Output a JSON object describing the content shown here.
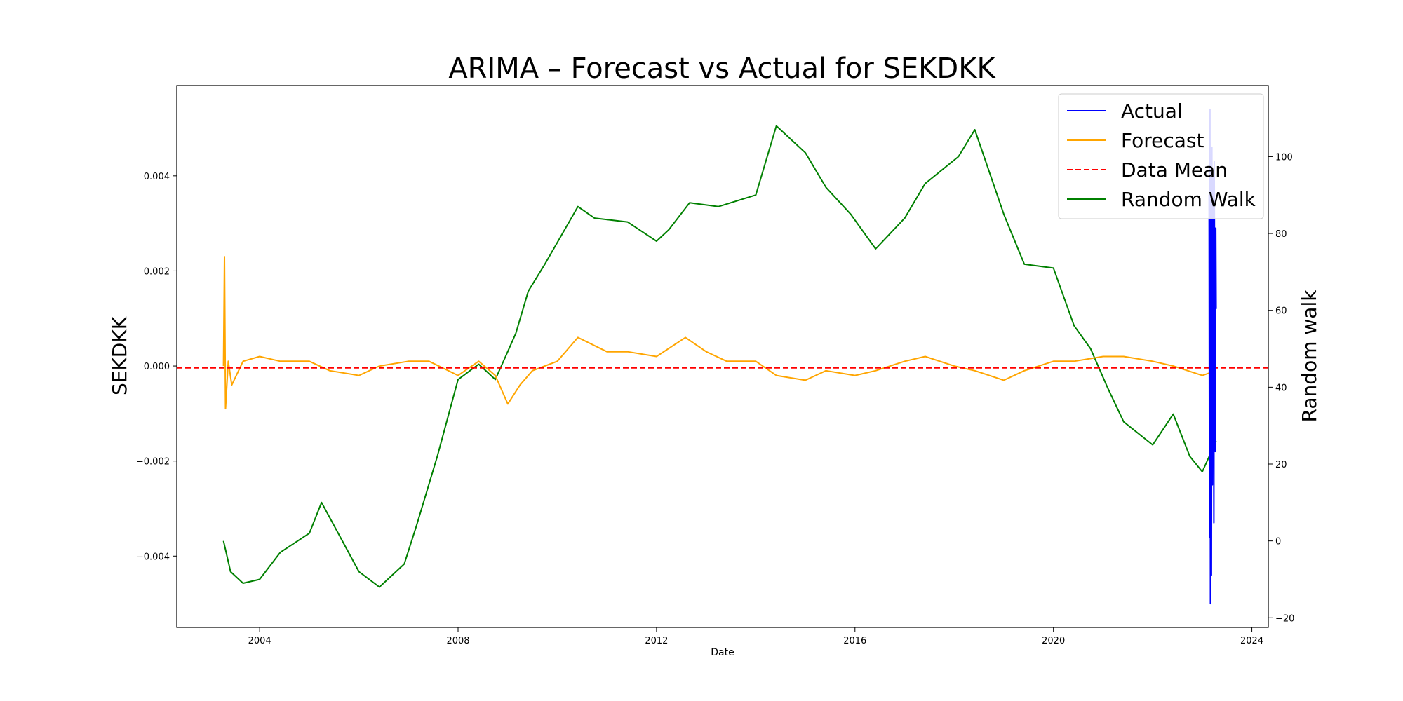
{
  "chart_data": {
    "type": "line",
    "title": "ARIMA – Forecast vs Actual for SEKDKK",
    "xlabel": "Date",
    "ylabel": "SEKDKK",
    "y2label": "Random walk",
    "x_ticks": [
      "2004",
      "2008",
      "2012",
      "2016",
      "2020",
      "2024"
    ],
    "xlim": [
      "2002-05-01",
      "2024-05-01"
    ],
    "ylim": [
      -0.0055,
      0.0059
    ],
    "y_ticks": [
      -0.004,
      -0.002,
      0.0,
      0.002,
      0.004
    ],
    "y_tick_labels": [
      "−0.004",
      "−0.002",
      "0.000",
      "0.002",
      "0.004"
    ],
    "y2lim": [
      -22.5,
      118.5
    ],
    "y2_ticks": [
      -20,
      0,
      20,
      40,
      60,
      80,
      100
    ],
    "y2_tick_labels": [
      "−20",
      "0",
      "20",
      "40",
      "60",
      "80",
      "100"
    ],
    "grid": false,
    "legend_position": "top-right",
    "series": [
      {
        "name": "Actual",
        "color": "#0000ff",
        "axis": "left",
        "x": [
          "2023-02-20",
          "2023-02-23",
          "2023-02-27",
          "2023-03-02",
          "2023-03-06",
          "2023-03-09",
          "2023-03-13",
          "2023-03-16",
          "2023-03-20",
          "2023-03-23",
          "2023-03-27",
          "2023-03-30",
          "2023-04-03",
          "2023-04-06",
          "2023-04-10",
          "2023-04-13"
        ],
        "y": [
          0.0036,
          -0.0036,
          0.0054,
          -0.005,
          0.0021,
          -0.0044,
          0.0046,
          -0.0025,
          0.004,
          0.003,
          -0.0033,
          0.0043,
          0.0006,
          -0.0018,
          0.0029,
          0.0012
        ]
      },
      {
        "name": "Forecast",
        "color": "#ffa500",
        "axis": "left",
        "x": [
          "2003-04-10",
          "2003-04-17",
          "2003-04-25",
          "2003-05-15",
          "2003-06-10",
          "2003-09-01",
          "2004-01-01",
          "2004-06-01",
          "2005-01-01",
          "2005-06-01",
          "2006-01-01",
          "2006-06-01",
          "2007-01-01",
          "2007-06-01",
          "2008-01-01",
          "2008-06-01",
          "2008-10-01",
          "2009-01-01",
          "2009-04-01",
          "2009-07-01",
          "2010-01-01",
          "2010-06-01",
          "2011-01-01",
          "2011-06-01",
          "2012-01-01",
          "2012-08-01",
          "2013-01-01",
          "2013-06-01",
          "2014-01-01",
          "2014-06-01",
          "2015-01-01",
          "2015-06-01",
          "2016-01-01",
          "2016-06-01",
          "2017-01-01",
          "2017-06-01",
          "2018-01-01",
          "2018-06-01",
          "2019-01-01",
          "2019-06-01",
          "2020-01-01",
          "2020-06-01",
          "2021-01-01",
          "2021-06-01",
          "2022-01-01",
          "2022-06-01",
          "2023-01-01",
          "2023-04-13"
        ],
        "y": [
          0.0,
          0.0023,
          -0.0009,
          0.0001,
          -0.0004,
          0.0001,
          0.0002,
          0.0001,
          0.0001,
          -0.0001,
          -0.0002,
          0.0,
          0.0001,
          0.0001,
          -0.0002,
          0.0001,
          -0.0002,
          -0.0008,
          -0.0004,
          -0.0001,
          0.0001,
          0.0006,
          0.0003,
          0.0003,
          0.0002,
          0.0006,
          0.0003,
          0.0001,
          0.0001,
          -0.0002,
          -0.0003,
          -0.0001,
          -0.0002,
          -0.0001,
          0.0001,
          0.0002,
          0.0,
          -0.0001,
          -0.0003,
          -0.0001,
          0.0001,
          0.0001,
          0.0002,
          0.0002,
          0.0001,
          0.0,
          -0.0002,
          -0.0001
        ]
      },
      {
        "name": "Data Mean",
        "color": "#ff0000",
        "axis": "left",
        "style": "dashed",
        "value": -4e-05
      },
      {
        "name": "Random Walk",
        "color": "#008000",
        "axis": "right",
        "x": [
          "2003-04-10",
          "2003-06-01",
          "2003-09-01",
          "2004-01-01",
          "2004-06-01",
          "2005-01-01",
          "2005-04-01",
          "2005-09-01",
          "2006-01-01",
          "2006-06-01",
          "2006-12-01",
          "2007-03-01",
          "2007-08-01",
          "2008-01-01",
          "2008-06-01",
          "2008-10-01",
          "2009-03-01",
          "2009-06-01",
          "2009-10-01",
          "2010-06-01",
          "2010-10-01",
          "2011-06-01",
          "2012-01-01",
          "2012-04-01",
          "2012-09-01",
          "2013-04-01",
          "2014-01-01",
          "2014-06-01",
          "2015-01-01",
          "2015-06-01",
          "2015-12-01",
          "2016-06-01",
          "2017-01-01",
          "2017-06-01",
          "2018-02-01",
          "2018-06-01",
          "2019-01-01",
          "2019-06-01",
          "2020-01-01",
          "2020-06-01",
          "2020-10-01",
          "2021-02-01",
          "2021-06-01",
          "2022-01-01",
          "2022-06-01",
          "2022-10-01",
          "2023-01-01",
          "2023-04-13"
        ],
        "y": [
          0,
          -8,
          -11,
          -10,
          -3,
          2,
          10,
          0,
          -8,
          -12,
          -6,
          4,
          22,
          42,
          46,
          42,
          54,
          65,
          72,
          87,
          84,
          83,
          78,
          81,
          88,
          87,
          90,
          108,
          101,
          92,
          85,
          76,
          84,
          93,
          100,
          107,
          85,
          72,
          71,
          56,
          50,
          40,
          31,
          25,
          33,
          22,
          18,
          26
        ]
      }
    ]
  }
}
